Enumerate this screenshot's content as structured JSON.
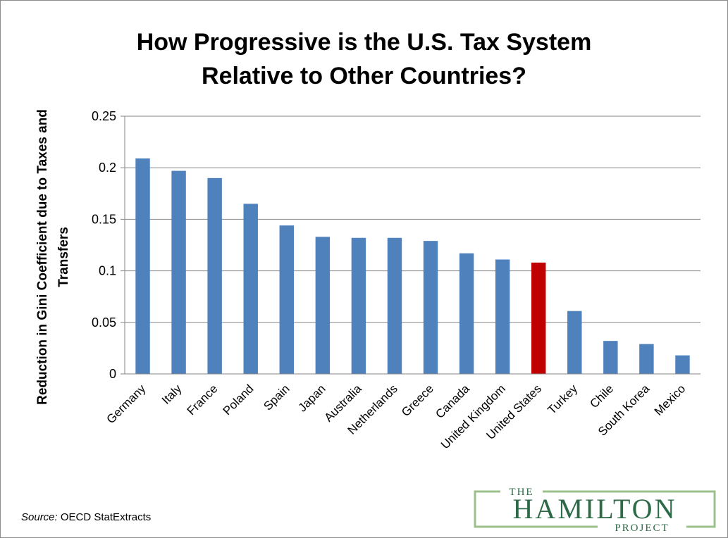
{
  "chart_data": {
    "type": "bar",
    "title_lines": [
      "How Progressive is the U.S. Tax System",
      "Relative to Other Countries?"
    ],
    "ylabel_lines": [
      "Reduction in Gini Coefficient due to Taxes and",
      "Transfers"
    ],
    "xlabel": "",
    "ylim": [
      0,
      0.25
    ],
    "yticks": [
      "0",
      "0.05",
      "0.1",
      "0.15",
      "0.2",
      "0.25"
    ],
    "ytick_values": [
      0,
      0.05,
      0.1,
      0.15,
      0.2,
      0.25
    ],
    "grid": true,
    "categories": [
      "Germany",
      "Italy",
      "France",
      "Poland",
      "Spain",
      "Japan",
      "Australia",
      "Netherlands",
      "Greece",
      "Canada",
      "United Kingdom",
      "United States",
      "Turkey",
      "Chile",
      "South Korea",
      "Mexico"
    ],
    "values": [
      0.209,
      0.197,
      0.19,
      0.165,
      0.144,
      0.133,
      0.132,
      0.132,
      0.129,
      0.117,
      0.111,
      0.108,
      0.061,
      0.032,
      0.029,
      0.018
    ],
    "bar_color": "#4f81bd",
    "highlight": {
      "category": "United States",
      "color": "#c00000"
    }
  },
  "source": {
    "label": "Source:",
    "text": "OECD StatExtracts"
  },
  "logo": {
    "top": "THE",
    "main": "HAMILTON",
    "bottom": "PROJECT",
    "color": "#2d6a47",
    "border_color": "#9dc08b"
  }
}
